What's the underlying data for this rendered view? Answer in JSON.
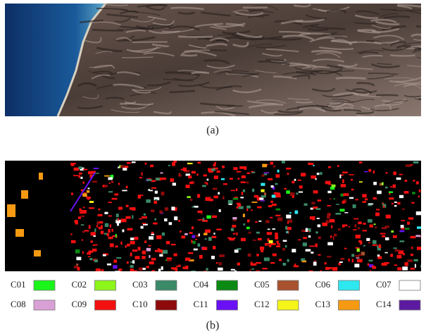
{
  "figure": {
    "captions": [
      "(a)",
      "(b)"
    ],
    "legend": [
      {
        "label": "C01",
        "color": "#1af51a"
      },
      {
        "label": "C02",
        "color": "#8cf51a"
      },
      {
        "label": "C03",
        "color": "#3a8a68"
      },
      {
        "label": "C04",
        "color": "#0a8a12"
      },
      {
        "label": "C05",
        "color": "#a8522e"
      },
      {
        "label": "C06",
        "color": "#2ee8f0"
      },
      {
        "label": "C07",
        "color": "#ffffff"
      },
      {
        "label": "C08",
        "color": "#d9a0d6"
      },
      {
        "label": "C09",
        "color": "#f51010"
      },
      {
        "label": "C10",
        "color": "#8e0a0a"
      },
      {
        "label": "C11",
        "color": "#6a10f5"
      },
      {
        "label": "C12",
        "color": "#f5f51a"
      },
      {
        "label": "C13",
        "color": "#f59a12"
      },
      {
        "label": "C14",
        "color": "#5c1aa0"
      }
    ]
  }
}
